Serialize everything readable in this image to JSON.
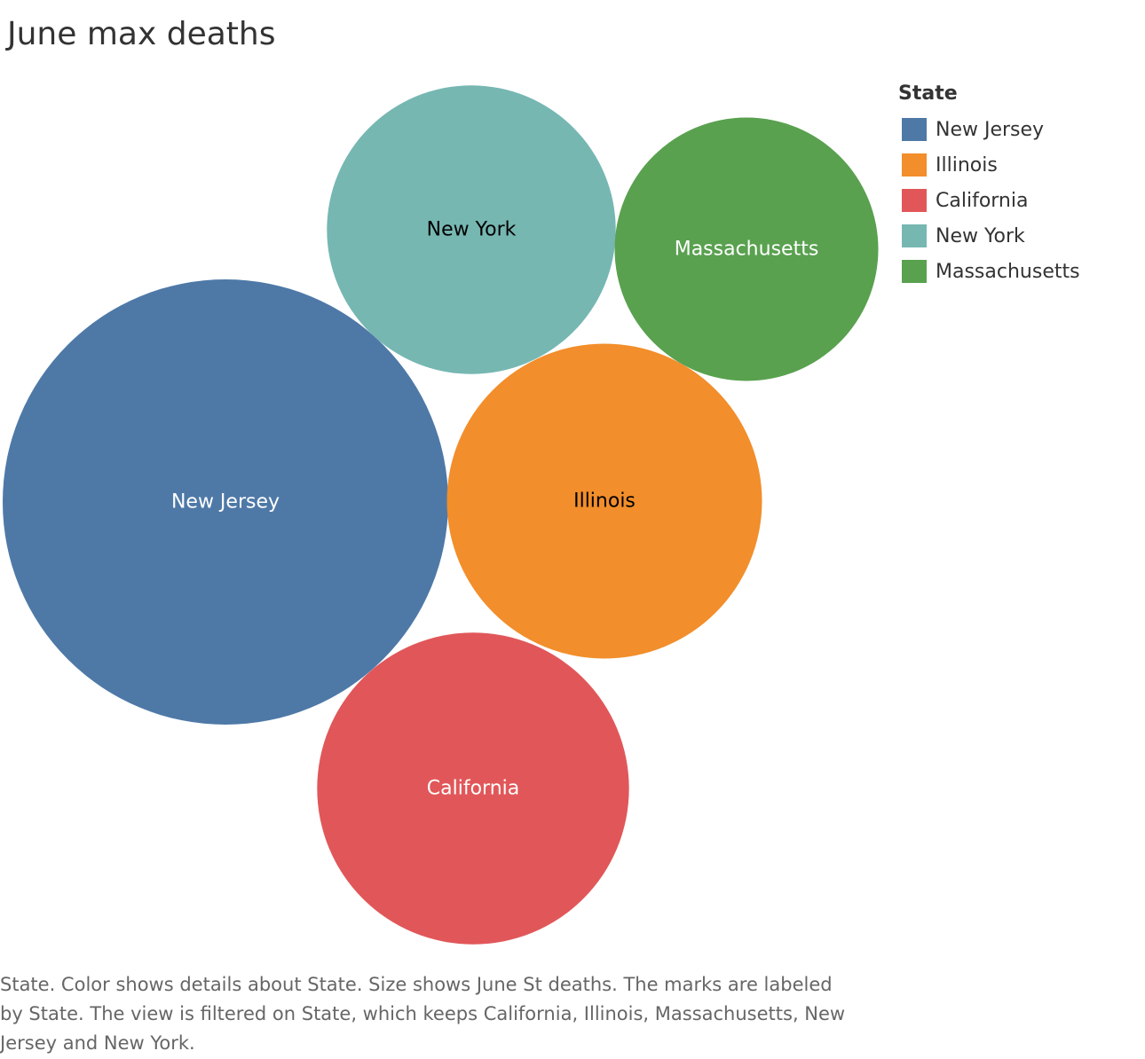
{
  "chart_data": {
    "type": "bubble",
    "title": "June max deaths",
    "size_measure": "June St deaths",
    "legend": {
      "title": "State",
      "placement": "top-right",
      "items": [
        {
          "label": "New Jersey",
          "color": "#4e79a7"
        },
        {
          "label": "Illinois",
          "color": "#f28e2b"
        },
        {
          "label": "California",
          "color": "#e15759"
        },
        {
          "label": "New York",
          "color": "#76b7b2"
        },
        {
          "label": "Massachusetts",
          "color": "#59a14f"
        }
      ]
    },
    "series": [
      {
        "name": "New Jersey",
        "relative_size": 1.0,
        "color": "#4e79a7",
        "label_color": "#ffffff"
      },
      {
        "name": "Illinois",
        "relative_size": 0.5,
        "color": "#f28e2b",
        "label_color": "#000000"
      },
      {
        "name": "California",
        "relative_size": 0.49,
        "color": "#e15759",
        "label_color": "#ffffff"
      },
      {
        "name": "New York",
        "relative_size": 0.42,
        "color": "#76b7b2",
        "label_color": "#000000"
      },
      {
        "name": "Massachusetts",
        "relative_size": 0.35,
        "color": "#59a14f",
        "label_color": "#ffffff"
      }
    ]
  },
  "caption": "State.  Color shows details about State.  Size shows June St deaths.  The marks are labeled by State. The view is filtered on State, which keeps California, Illinois, Massachusetts, New Jersey and New York."
}
